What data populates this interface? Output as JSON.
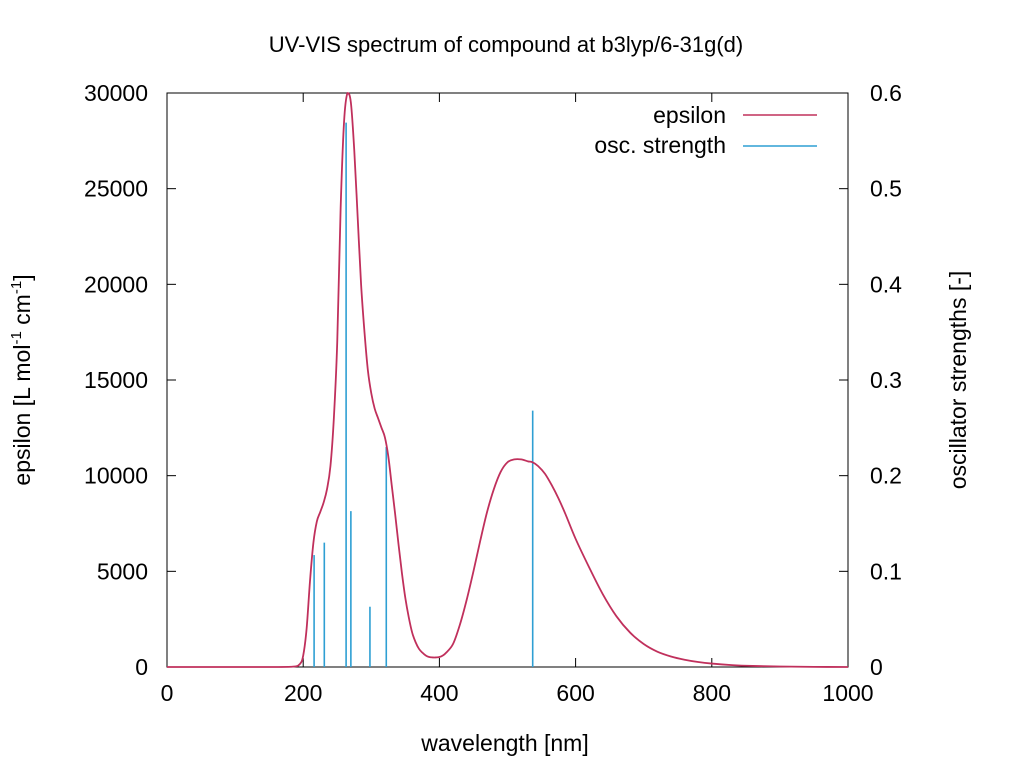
{
  "chart_data": {
    "type": "line",
    "title": "UV-VIS spectrum of compound at b3lyp/6-31g(d)",
    "xlabel": "wavelength [nm]",
    "ylabel": "epsilon [L mol-1 cm-1]",
    "ylabel_parts": [
      "epsilon [L mol",
      "-1",
      " cm",
      "-1",
      "]"
    ],
    "y2label": "oscillator strengths [-]",
    "xlim": [
      0,
      1000
    ],
    "ylim": [
      0,
      30000
    ],
    "y2lim": [
      0,
      0.6
    ],
    "xticks": [
      "0",
      "200",
      "400",
      "600",
      "800",
      "1000"
    ],
    "yticks": [
      "0",
      "5000",
      "10000",
      "15000",
      "20000",
      "25000",
      "30000"
    ],
    "y2ticks": [
      "0",
      "0.1",
      "0.2",
      "0.3",
      "0.4",
      "0.5",
      "0.6"
    ],
    "legend_position": "top-right",
    "grid": false,
    "series": [
      {
        "name": "epsilon",
        "color": "#c0305c",
        "axis": "left",
        "x": [
          0,
          100,
          150,
          185,
          195,
          200,
          205,
          210,
          215,
          220,
          225,
          230,
          235,
          240,
          245,
          250,
          255,
          260,
          265,
          270,
          275,
          280,
          285,
          290,
          295,
          300,
          305,
          310,
          315,
          320,
          325,
          330,
          335,
          340,
          345,
          350,
          355,
          360,
          365,
          370,
          375,
          380,
          385,
          390,
          395,
          400,
          405,
          410,
          420,
          430,
          440,
          450,
          460,
          470,
          480,
          490,
          500,
          510,
          520,
          530,
          537,
          545,
          555,
          565,
          575,
          585,
          600,
          620,
          640,
          660,
          680,
          700,
          720,
          740,
          760,
          780,
          800,
          830,
          860,
          900,
          950,
          1000
        ],
        "y": [
          0,
          0,
          0,
          20,
          150,
          600,
          2000,
          4500,
          6500,
          7600,
          8100,
          8600,
          9300,
          10500,
          13000,
          17000,
          24000,
          28500,
          30000,
          29500,
          27000,
          23500,
          20000,
          17500,
          15500,
          14300,
          13500,
          13000,
          12500,
          12000,
          11000,
          9500,
          8000,
          6400,
          4900,
          3600,
          2600,
          1800,
          1300,
          950,
          750,
          600,
          520,
          500,
          500,
          520,
          600,
          750,
          1200,
          2200,
          3500,
          5000,
          6600,
          8100,
          9300,
          10200,
          10700,
          10850,
          10850,
          10750,
          10700,
          10500,
          10100,
          9500,
          8800,
          8000,
          6700,
          5200,
          3800,
          2650,
          1800,
          1200,
          800,
          550,
          380,
          260,
          180,
          100,
          55,
          25,
          8,
          0
        ]
      },
      {
        "name": "osc. strength",
        "color": "#2e9fd3",
        "axis": "right",
        "type": "impulses",
        "x": [
          216,
          231,
          263,
          270,
          298,
          322,
          537
        ],
        "y": [
          0.117,
          0.13,
          0.569,
          0.163,
          0.063,
          0.23,
          0.268
        ]
      }
    ]
  }
}
